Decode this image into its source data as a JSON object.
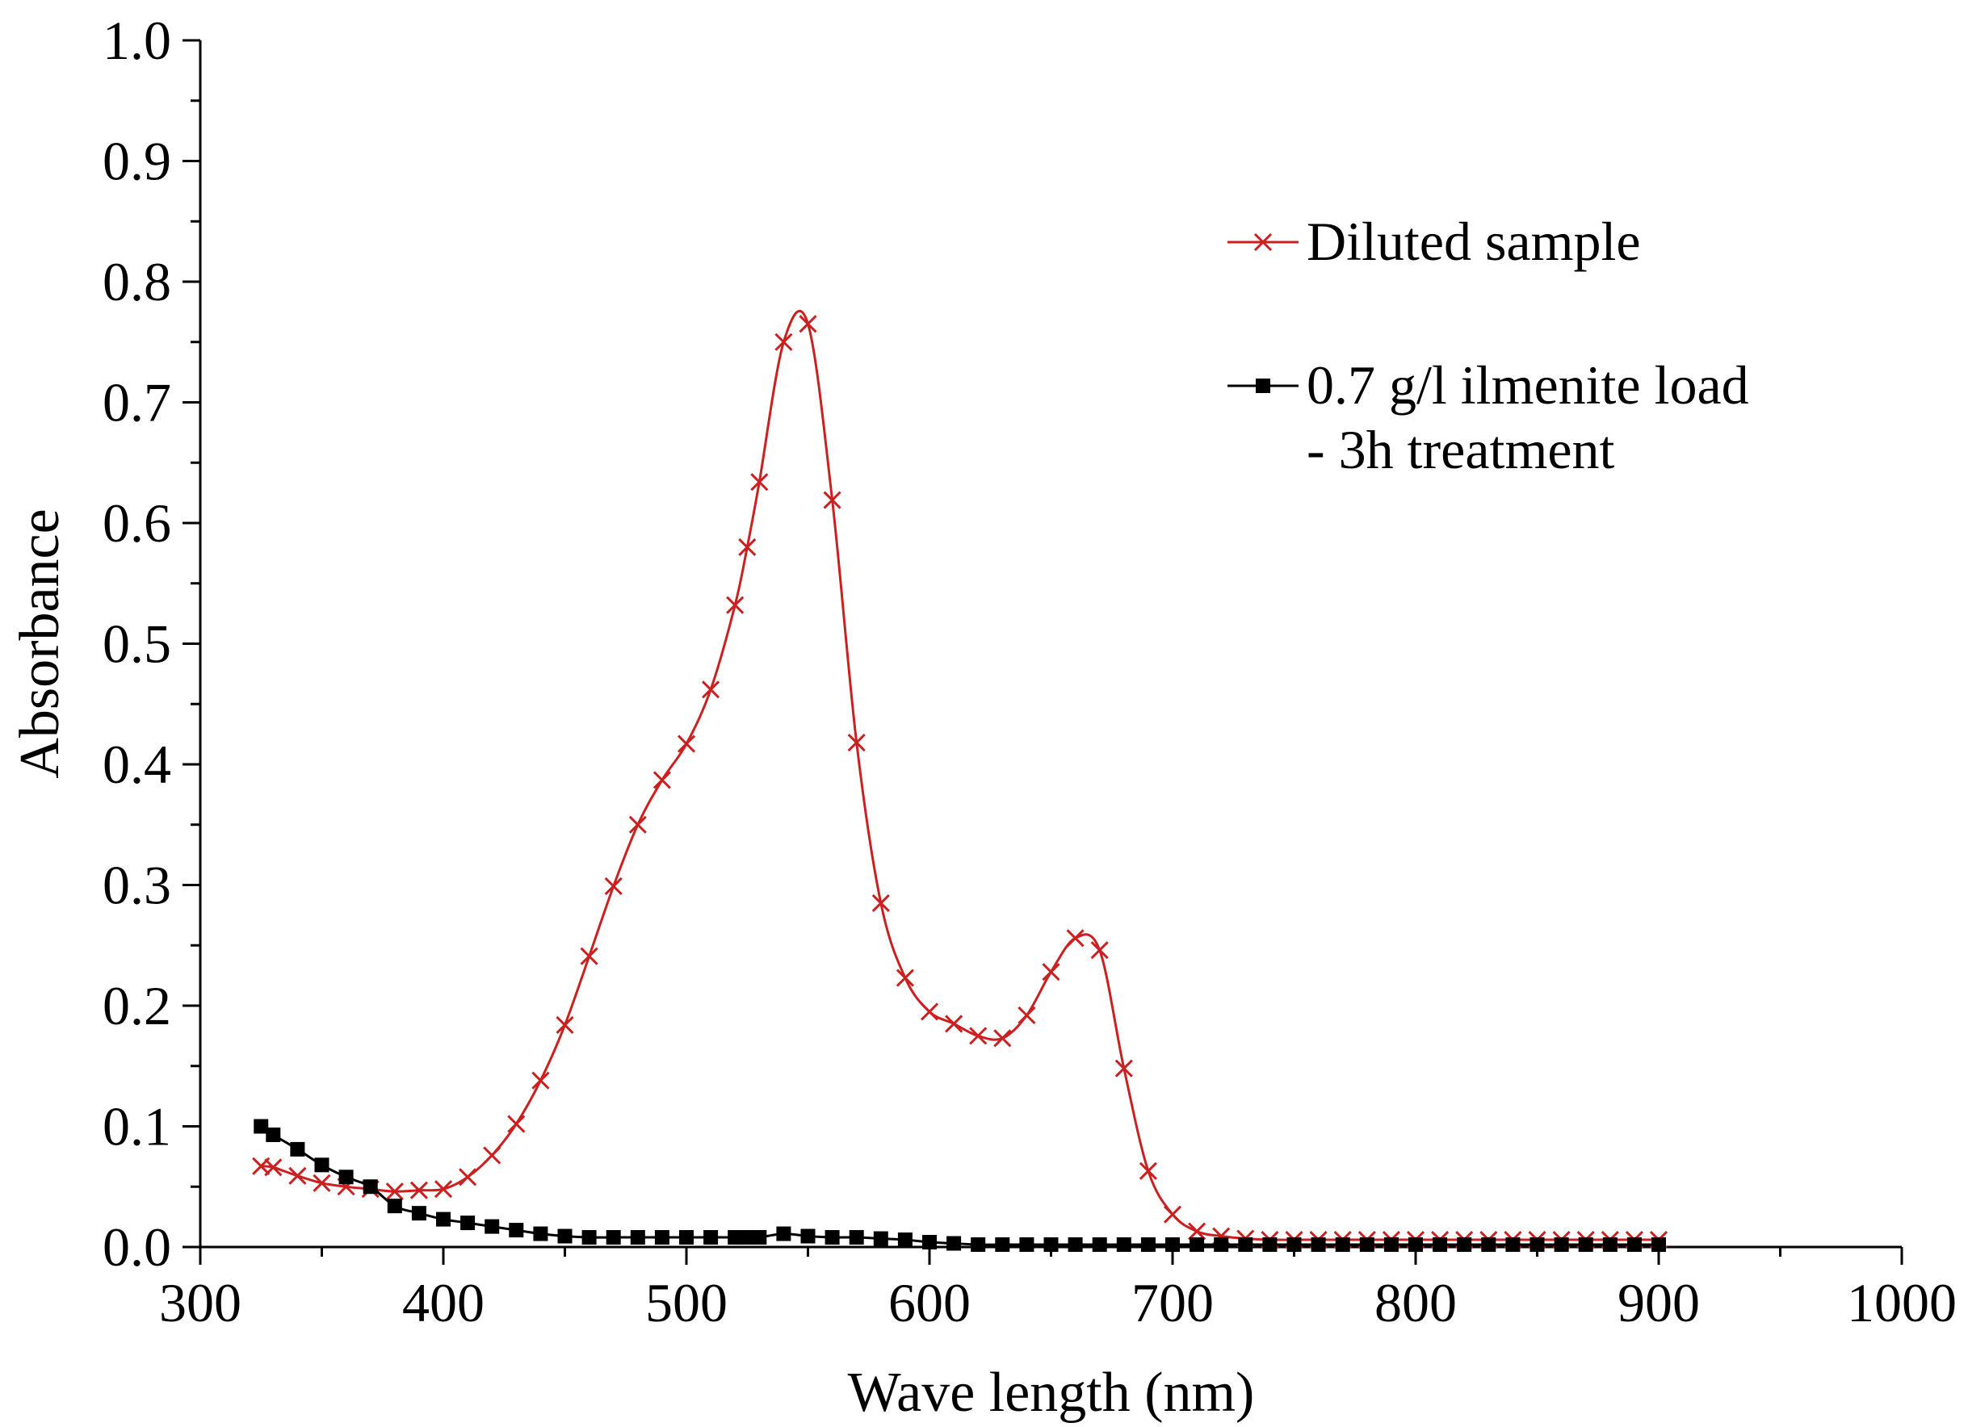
{
  "chart_data": {
    "type": "line",
    "title": "",
    "xlabel": "Wave length (nm)",
    "ylabel": "Absorbance",
    "xlim": [
      300,
      1000
    ],
    "ylim": [
      0,
      1.0
    ],
    "x_ticks": [
      300,
      400,
      500,
      600,
      700,
      800,
      900,
      1000
    ],
    "x_tick_labels": [
      "300",
      "400",
      "500",
      "600",
      "700",
      "800",
      "900",
      "1000"
    ],
    "y_ticks": [
      0,
      0.1,
      0.2,
      0.3,
      0.4,
      0.5,
      0.6,
      0.7,
      0.8,
      0.9,
      1.0
    ],
    "y_tick_labels": [
      "0.0",
      "0.1",
      "0.2",
      "0.3",
      "0.4",
      "0.5",
      "0.6",
      "0.7",
      "0.8",
      "0.9",
      "1.0"
    ],
    "grid": false,
    "legend_position": "top-right",
    "series": [
      {
        "name": "Diluted sample",
        "color": "#cc1f1f",
        "marker": "x",
        "points": [
          [
            325,
            0.067
          ],
          [
            330,
            0.066
          ],
          [
            340,
            0.059
          ],
          [
            350,
            0.053
          ],
          [
            360,
            0.05
          ],
          [
            370,
            0.048
          ],
          [
            380,
            0.046
          ],
          [
            390,
            0.047
          ],
          [
            400,
            0.048
          ],
          [
            410,
            0.058
          ],
          [
            420,
            0.076
          ],
          [
            430,
            0.102
          ],
          [
            440,
            0.138
          ],
          [
            450,
            0.184
          ],
          [
            460,
            0.241
          ],
          [
            470,
            0.299
          ],
          [
            480,
            0.35
          ],
          [
            490,
            0.387
          ],
          [
            500,
            0.417
          ],
          [
            510,
            0.462
          ],
          [
            520,
            0.532
          ],
          [
            525,
            0.58
          ],
          [
            530,
            0.634
          ],
          [
            540,
            0.75
          ],
          [
            550,
            0.765
          ],
          [
            560,
            0.619
          ],
          [
            570,
            0.418
          ],
          [
            580,
            0.285
          ],
          [
            590,
            0.223
          ],
          [
            600,
            0.195
          ],
          [
            610,
            0.185
          ],
          [
            620,
            0.175
          ],
          [
            630,
            0.173
          ],
          [
            640,
            0.192
          ],
          [
            650,
            0.228
          ],
          [
            660,
            0.256
          ],
          [
            670,
            0.246
          ],
          [
            680,
            0.148
          ],
          [
            690,
            0.063
          ],
          [
            700,
            0.027
          ],
          [
            710,
            0.013
          ],
          [
            720,
            0.009
          ],
          [
            730,
            0.007
          ],
          [
            740,
            0.006
          ],
          [
            750,
            0.006
          ],
          [
            760,
            0.006
          ],
          [
            770,
            0.006
          ],
          [
            780,
            0.006
          ],
          [
            790,
            0.006
          ],
          [
            800,
            0.006
          ],
          [
            810,
            0.006
          ],
          [
            820,
            0.006
          ],
          [
            830,
            0.006
          ],
          [
            840,
            0.006
          ],
          [
            850,
            0.006
          ],
          [
            860,
            0.006
          ],
          [
            870,
            0.006
          ],
          [
            880,
            0.006
          ],
          [
            890,
            0.006
          ],
          [
            900,
            0.006
          ]
        ]
      },
      {
        "name": "0.7 g/l ilmenite load - 3h treatment",
        "legend_lines": [
          "0.7 g/l ilmenite load",
          "- 3h treatment"
        ],
        "color": "#000000",
        "marker": "square",
        "points": [
          [
            325,
            0.1
          ],
          [
            330,
            0.093
          ],
          [
            340,
            0.081
          ],
          [
            350,
            0.068
          ],
          [
            360,
            0.058
          ],
          [
            370,
            0.05
          ],
          [
            380,
            0.034
          ],
          [
            390,
            0.028
          ],
          [
            400,
            0.023
          ],
          [
            410,
            0.02
          ],
          [
            420,
            0.017
          ],
          [
            430,
            0.014
          ],
          [
            440,
            0.011
          ],
          [
            450,
            0.009
          ],
          [
            460,
            0.008
          ],
          [
            470,
            0.008
          ],
          [
            480,
            0.008
          ],
          [
            490,
            0.008
          ],
          [
            500,
            0.008
          ],
          [
            510,
            0.008
          ],
          [
            520,
            0.008
          ],
          [
            525,
            0.008
          ],
          [
            530,
            0.008
          ],
          [
            540,
            0.011
          ],
          [
            550,
            0.009
          ],
          [
            560,
            0.008
          ],
          [
            570,
            0.008
          ],
          [
            580,
            0.007
          ],
          [
            590,
            0.006
          ],
          [
            600,
            0.004
          ],
          [
            610,
            0.003
          ],
          [
            620,
            0.002
          ],
          [
            630,
            0.002
          ],
          [
            640,
            0.002
          ],
          [
            650,
            0.002
          ],
          [
            660,
            0.002
          ],
          [
            670,
            0.002
          ],
          [
            680,
            0.002
          ],
          [
            690,
            0.002
          ],
          [
            700,
            0.002
          ],
          [
            710,
            0.002
          ],
          [
            720,
            0.002
          ],
          [
            730,
            0.002
          ],
          [
            740,
            0.002
          ],
          [
            750,
            0.002
          ],
          [
            760,
            0.002
          ],
          [
            770,
            0.002
          ],
          [
            780,
            0.002
          ],
          [
            790,
            0.002
          ],
          [
            800,
            0.002
          ],
          [
            810,
            0.002
          ],
          [
            820,
            0.002
          ],
          [
            830,
            0.002
          ],
          [
            840,
            0.002
          ],
          [
            850,
            0.002
          ],
          [
            860,
            0.002
          ],
          [
            870,
            0.002
          ],
          [
            880,
            0.002
          ],
          [
            890,
            0.002
          ],
          [
            900,
            0.002
          ]
        ]
      }
    ]
  }
}
